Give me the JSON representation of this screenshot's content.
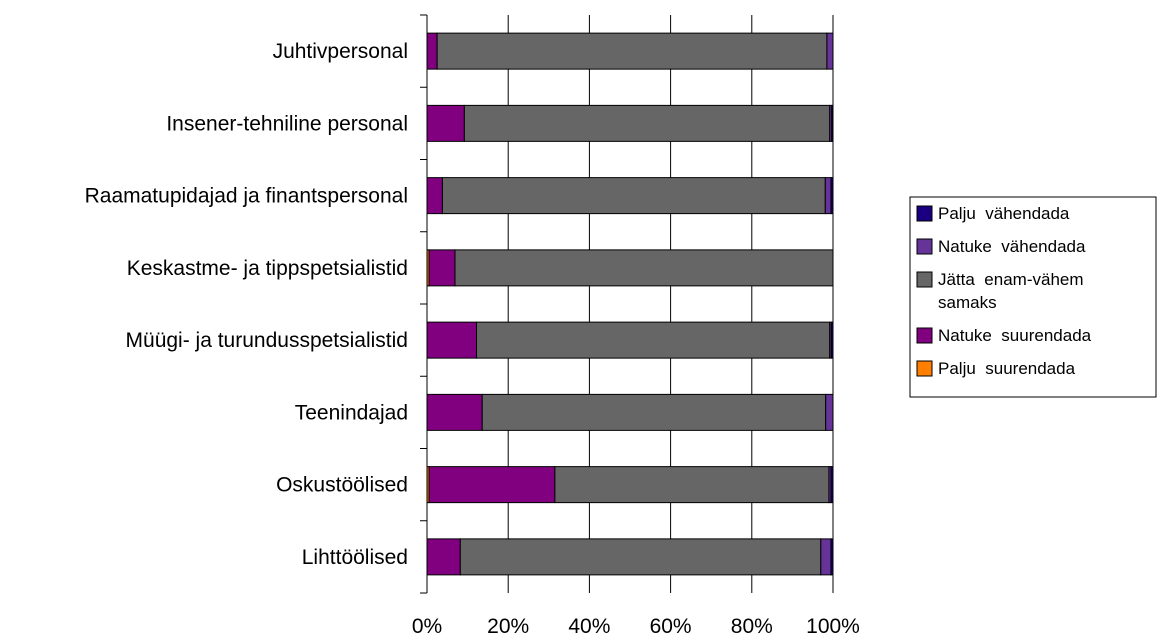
{
  "chart_data": {
    "type": "bar",
    "orientation": "horizontal",
    "stacked": "percent",
    "categories": [
      "Juhtivpersonal",
      "Insener-tehniline personal",
      "Raamatupidajad ja finantspersonal",
      "Keskastme- ja tippspetsialistid",
      "Müügi- ja turundusspetsialistid",
      "Teenindajad",
      "Oskustöölised",
      "Lihttöölised"
    ],
    "series": [
      {
        "name": "Palju suurendada",
        "color": "#ff7f00",
        "values": [
          0,
          0,
          0,
          0.5,
          0,
          0,
          0.5,
          0
        ]
      },
      {
        "name": "Natuke suurendada",
        "color": "#800080",
        "values": [
          2.5,
          9.2,
          3.8,
          6.4,
          12.2,
          13.6,
          31.0,
          8.2
        ]
      },
      {
        "name": "Jätta enam-vähem samaks",
        "color": "#666666",
        "values": [
          96.0,
          90.0,
          94.3,
          93.1,
          87.0,
          84.6,
          67.5,
          88.8
        ]
      },
      {
        "name": "Natuke vähendada",
        "color": "#663399",
        "values": [
          1.5,
          0.5,
          1.4,
          0,
          0.4,
          1.8,
          0.5,
          2.5
        ]
      },
      {
        "name": "Palju vähendada",
        "color": "#1a0080",
        "values": [
          0,
          0.3,
          0.5,
          0,
          0.4,
          0,
          0.5,
          0.5
        ]
      }
    ],
    "legend_order": [
      "Palju vähendada",
      "Natuke vähendada",
      "Jätta enam-vähem samaks",
      "Natuke suurendada",
      "Palju suurendada"
    ],
    "legend_lines": {
      "Palju vähendada": [
        "Palju  vähendada"
      ],
      "Natuke vähendada": [
        "Natuke  vähendada"
      ],
      "Jätta enam-vähem samaks": [
        "Jätta  enam-vähem",
        "samaks"
      ],
      "Natuke suurendada": [
        "Natuke  suurendada"
      ],
      "Palju suurendada": [
        "Palju  suurendada"
      ]
    },
    "x_ticks": [
      "0%",
      "20%",
      "40%",
      "60%",
      "80%",
      "100%"
    ],
    "xlim": [
      0,
      100
    ],
    "grid": true,
    "legend_position": "right",
    "title": "",
    "xlabel": "",
    "ylabel": ""
  }
}
